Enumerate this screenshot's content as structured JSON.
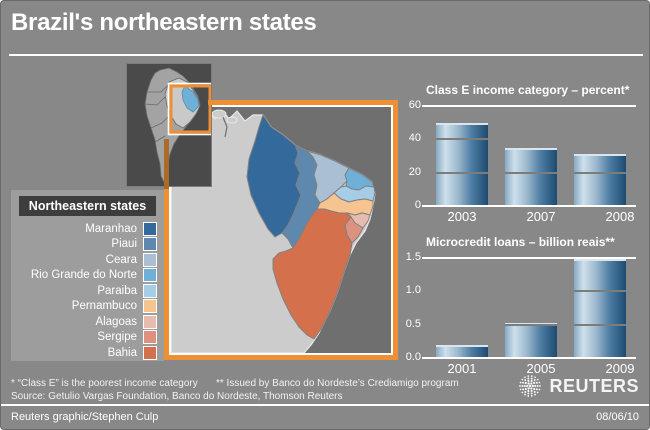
{
  "title": "Brazil's northeastern states",
  "map": {
    "legend_header": "Northeastern states",
    "states": [
      {
        "key": "maranhao",
        "label": "Maranhao",
        "color": "#33699b"
      },
      {
        "key": "piaui",
        "label": "Piaui",
        "color": "#5e88ad"
      },
      {
        "key": "ceara",
        "label": "Ceara",
        "color": "#aabfd4"
      },
      {
        "key": "rio-grande-do-norte",
        "label": "Rio Grande do Norte",
        "color": "#6fb0d9"
      },
      {
        "key": "paraiba",
        "label": "Paraiba",
        "color": "#a5cde6"
      },
      {
        "key": "pernambuco",
        "label": "Pernambuco",
        "color": "#f6c490"
      },
      {
        "key": "alagoas",
        "label": "Alagoas",
        "color": "#e5bcae"
      },
      {
        "key": "sergipe",
        "label": "Sergipe",
        "color": "#dd9280"
      },
      {
        "key": "bahia",
        "label": "Bahia",
        "color": "#d4714c"
      }
    ]
  },
  "chart_data": [
    {
      "type": "bar",
      "title": "Class E income category – percent*",
      "categories": [
        "2003",
        "2007",
        "2008"
      ],
      "values": [
        50,
        35,
        31
      ],
      "ylim": [
        0,
        60
      ],
      "yticks": [
        {
          "label": "60",
          "value": 60
        },
        {
          "label": "40",
          "value": 40
        },
        {
          "label": "20",
          "value": 20
        },
        {
          "label": "0",
          "value": 0
        }
      ],
      "gridlines": [
        40,
        20
      ],
      "legend_position": "none"
    },
    {
      "type": "bar",
      "title": "Microcredit loans – billion reais**",
      "categories": [
        "2001",
        "2005",
        "2009"
      ],
      "values": [
        0.2,
        0.53,
        1.48
      ],
      "ylim": [
        0,
        1.5
      ],
      "yticks": [
        {
          "label": "1.5",
          "value": 1.5
        },
        {
          "label": "1.0",
          "value": 1.0
        },
        {
          "label": "0.5",
          "value": 0.5
        },
        {
          "label": "0.0",
          "value": 0
        }
      ],
      "gridlines": [
        1.0,
        0.5
      ],
      "legend_position": "none"
    }
  ],
  "footnotes": {
    "note1": "* “Class E” is the poorest income category",
    "note2": "** Issued by Banco do Nordeste’s Crediamigo program",
    "source": "Source: Getulio Vargas Foundation, Banco do Nordeste, Thomson Reuters"
  },
  "branding": {
    "logo_text": "REUTERS"
  },
  "footer": {
    "credit": "Reuters graphic/Stephen Culp",
    "date": "08/06/10"
  },
  "colors": {
    "background": "#888888",
    "accent_orange": "#ee8f33",
    "bar_dark": "#1c4a70",
    "bar_light": "#cfe0ec",
    "ocean": "#6f6f6f",
    "land": "#cccccc",
    "inset_bg": "#4a4a4a",
    "inset_highlight": "#6fb0d6"
  }
}
